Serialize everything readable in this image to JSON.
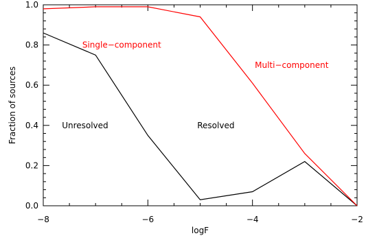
{
  "chart_data": {
    "type": "line",
    "xlabel": "logF",
    "ylabel": "Fraction of sources",
    "xlim": [
      -8,
      -2
    ],
    "ylim": [
      0,
      1
    ],
    "xticks": [
      -8,
      -6,
      -4,
      -2
    ],
    "xtick_labels": [
      "−8",
      "−6",
      "−4",
      "−2"
    ],
    "yticks": [
      0,
      0.2,
      0.4,
      0.6,
      0.8,
      1.0
    ],
    "ytick_labels": [
      "0.0",
      "0.2",
      "0.4",
      "0.6",
      "0.8",
      "1.0"
    ],
    "grid": false,
    "series": [
      {
        "color": "#000000",
        "x": [
          -8,
          -7,
          -6,
          -5,
          -4,
          -3,
          -2
        ],
        "y": [
          0.86,
          0.75,
          0.35,
          0.03,
          0.07,
          0.22,
          0.0
        ]
      },
      {
        "color": "#ff0000",
        "x": [
          -8,
          -7,
          -6,
          -5,
          -4,
          -3,
          -2
        ],
        "y": [
          0.98,
          0.99,
          0.99,
          0.94,
          0.61,
          0.26,
          0.0
        ]
      }
    ],
    "annotations": [
      {
        "text": "Single−component",
        "color": "#ff0000",
        "x": -6.5,
        "y": 0.8
      },
      {
        "text": "Multi−component",
        "color": "#ff0000",
        "x": -3.25,
        "y": 0.7
      },
      {
        "text": "Unresolved",
        "color": "#000000",
        "x": -7.2,
        "y": 0.4
      },
      {
        "text": "Resolved",
        "color": "#000000",
        "x": -4.7,
        "y": 0.4
      }
    ]
  }
}
